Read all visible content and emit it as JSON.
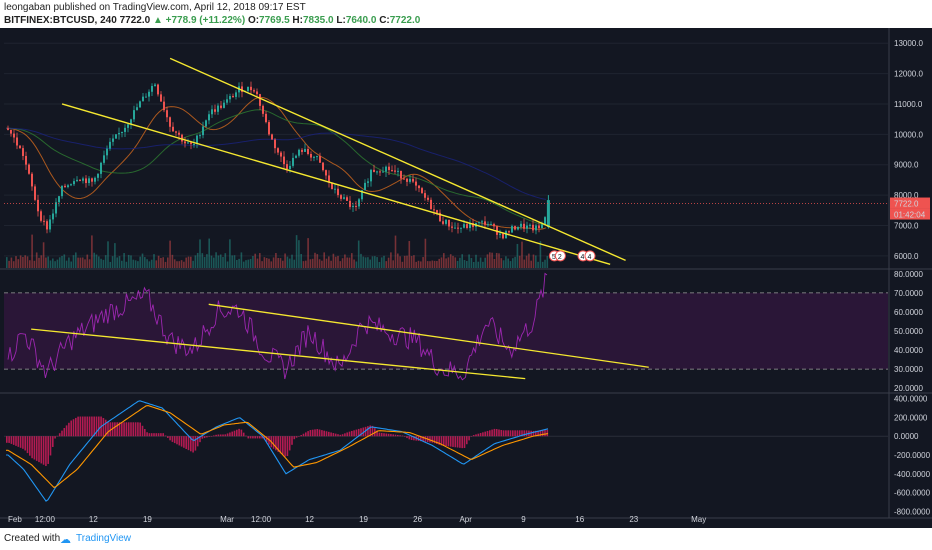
{
  "header": {
    "author": "leongaban",
    "published_text": "published on TradingView.com, April 12, 2018 09:17 EST",
    "symbol": "BITFINEX:BTCUSD, 240",
    "price": "7722.0",
    "change": "+778.9 (+11.22%)",
    "open_label": "O:",
    "open": "7769.5",
    "high_label": "H:",
    "high": "7835.0",
    "low_label": "L:",
    "low": "7640.0",
    "close_label": "C:",
    "close": "7722.0"
  },
  "footer": {
    "created_with": "Created with",
    "brand": "TradingView"
  },
  "colors": {
    "background": "#131722",
    "trendline": "#f5e830",
    "rsi": "#9c27b0",
    "rsi_band": "#2a1637",
    "macd": "#2196f3",
    "signal": "#ff9800",
    "histogram": "#e91e63",
    "up_candle": "#26a69a",
    "down_candle": "#ef5350",
    "price_label": "#ef5350"
  },
  "chart_data": [
    {
      "type": "candlestick",
      "title": "BTCUSD price",
      "y_ticks": [
        "13000.0",
        "12000.0",
        "11000.0",
        "10000.0",
        "9000.0",
        "8000.0",
        "7000.0",
        "6000.0"
      ],
      "ylim": [
        5600,
        13500
      ],
      "last_price_label": "7722.0",
      "countdown_label": "01:42:04",
      "close_path": [
        {
          "x": "Feb 1",
          "y": 10200
        },
        {
          "x": "Feb 3",
          "y": 9300
        },
        {
          "x": "Feb 5",
          "y": 7400
        },
        {
          "x": "Feb 6",
          "y": 6900
        },
        {
          "x": "Feb 8",
          "y": 8200
        },
        {
          "x": "Feb 10",
          "y": 8600
        },
        {
          "x": "Feb 12",
          "y": 8400
        },
        {
          "x": "Feb 14",
          "y": 9600
        },
        {
          "x": "Feb 16",
          "y": 10200
        },
        {
          "x": "Feb 18",
          "y": 11000
        },
        {
          "x": "Feb 20",
          "y": 11700
        },
        {
          "x": "Feb 22",
          "y": 10300
        },
        {
          "x": "Feb 24",
          "y": 9700
        },
        {
          "x": "Feb 25",
          "y": 9600
        },
        {
          "x": "Feb 27",
          "y": 10700
        },
        {
          "x": "Mar 1",
          "y": 11000
        },
        {
          "x": "Mar 3",
          "y": 11500
        },
        {
          "x": "Mar 5",
          "y": 11500
        },
        {
          "x": "Mar 7",
          "y": 9900
        },
        {
          "x": "Mar 9",
          "y": 8900
        },
        {
          "x": "Mar 11",
          "y": 9500
        },
        {
          "x": "Mar 13",
          "y": 9200
        },
        {
          "x": "Mar 15",
          "y": 8200
        },
        {
          "x": "Mar 18",
          "y": 7500
        },
        {
          "x": "Mar 20",
          "y": 8800
        },
        {
          "x": "Mar 22",
          "y": 8900
        },
        {
          "x": "Mar 25",
          "y": 8500
        },
        {
          "x": "Mar 27",
          "y": 7900
        },
        {
          "x": "Mar 29",
          "y": 7200
        },
        {
          "x": "Mar 31",
          "y": 6900
        },
        {
          "x": "Apr 2",
          "y": 7000
        },
        {
          "x": "Apr 4",
          "y": 7100
        },
        {
          "x": "Apr 6",
          "y": 6650
        },
        {
          "x": "Apr 8",
          "y": 7000
        },
        {
          "x": "Apr 10",
          "y": 6900
        },
        {
          "x": "Apr 11",
          "y": 6900
        },
        {
          "x": "Apr 12",
          "y": 7722
        }
      ]
    },
    {
      "type": "line",
      "title": "RSI",
      "y_ticks": [
        "80.0000",
        "70.0000",
        "60.0000",
        "50.0000",
        "40.0000",
        "30.0000",
        "20.0000"
      ],
      "ylim": [
        18,
        82
      ],
      "bands": [
        30,
        70
      ],
      "series": [
        {
          "values": [
            {
              "x": "Feb 1",
              "y": 35
            },
            {
              "x": "Feb 3",
              "y": 50
            },
            {
              "x": "Feb 6",
              "y": 28
            },
            {
              "x": "Feb 9",
              "y": 45
            },
            {
              "x": "Feb 14",
              "y": 60
            },
            {
              "x": "Feb 19",
              "y": 68
            },
            {
              "x": "Feb 22",
              "y": 45
            },
            {
              "x": "Feb 25",
              "y": 40
            },
            {
              "x": "Feb 28",
              "y": 60
            },
            {
              "x": "Mar 3",
              "y": 62
            },
            {
              "x": "Mar 6",
              "y": 40
            },
            {
              "x": "Mar 9",
              "y": 30
            },
            {
              "x": "Mar 12",
              "y": 50
            },
            {
              "x": "Mar 16",
              "y": 30
            },
            {
              "x": "Mar 19",
              "y": 55
            },
            {
              "x": "Mar 22",
              "y": 50
            },
            {
              "x": "Mar 26",
              "y": 45
            },
            {
              "x": "Mar 29",
              "y": 30
            },
            {
              "x": "Apr 1",
              "y": 28
            },
            {
              "x": "Apr 4",
              "y": 55
            },
            {
              "x": "Apr 7",
              "y": 40
            },
            {
              "x": "Apr 10",
              "y": 55
            },
            {
              "x": "Apr 12",
              "y": 80
            }
          ]
        }
      ]
    },
    {
      "type": "line",
      "title": "MACD",
      "y_ticks": [
        "400.0000",
        "200.0000",
        "0.0000",
        "-200.0000",
        "-400.0000",
        "-600.0000",
        "-800.0000"
      ],
      "ylim": [
        -850,
        450
      ],
      "series": [
        {
          "values": [
            {
              "x": "Feb 1",
              "y": -200
            },
            {
              "x": "Feb 3",
              "y": -350
            },
            {
              "x": "Feb 6",
              "y": -700
            },
            {
              "x": "Feb 9",
              "y": -300
            },
            {
              "x": "Feb 13",
              "y": 100
            },
            {
              "x": "Feb 18",
              "y": 380
            },
            {
              "x": "Feb 21",
              "y": 300
            },
            {
              "x": "Feb 25",
              "y": -50
            },
            {
              "x": "Feb 28",
              "y": 100
            },
            {
              "x": "Mar 3",
              "y": 200
            },
            {
              "x": "Mar 6",
              "y": 0
            },
            {
              "x": "Mar 9",
              "y": -400
            },
            {
              "x": "Mar 12",
              "y": -250
            },
            {
              "x": "Mar 16",
              "y": -150
            },
            {
              "x": "Mar 20",
              "y": 100
            },
            {
              "x": "Mar 24",
              "y": 50
            },
            {
              "x": "Mar 28",
              "y": -100
            },
            {
              "x": "Apr 1",
              "y": -300
            },
            {
              "x": "Apr 5",
              "y": -80
            },
            {
              "x": "Apr 9",
              "y": 20
            },
            {
              "x": "Apr 12",
              "y": 80
            }
          ]
        },
        {
          "values": [
            {
              "x": "Feb 1",
              "y": -150
            },
            {
              "x": "Feb 4",
              "y": -300
            },
            {
              "x": "Feb 7",
              "y": -550
            },
            {
              "x": "Feb 10",
              "y": -350
            },
            {
              "x": "Feb 14",
              "y": 50
            },
            {
              "x": "Feb 19",
              "y": 330
            },
            {
              "x": "Feb 22",
              "y": 250
            },
            {
              "x": "Feb 26",
              "y": 20
            },
            {
              "x": "Mar 1",
              "y": 120
            },
            {
              "x": "Mar 4",
              "y": 150
            },
            {
              "x": "Mar 7",
              "y": -50
            },
            {
              "x": "Mar 10",
              "y": -330
            },
            {
              "x": "Mar 13",
              "y": -280
            },
            {
              "x": "Mar 17",
              "y": -120
            },
            {
              "x": "Mar 21",
              "y": 60
            },
            {
              "x": "Mar 25",
              "y": 40
            },
            {
              "x": "Mar 29",
              "y": -80
            },
            {
              "x": "Apr 2",
              "y": -250
            },
            {
              "x": "Apr 6",
              "y": -100
            },
            {
              "x": "Apr 10",
              "y": 0
            },
            {
              "x": "Apr 12",
              "y": 30
            }
          ]
        }
      ]
    }
  ],
  "x_axis_labels": [
    "Feb",
    "12:00",
    "12",
    "19",
    "Mar",
    "12:00",
    "12",
    "19",
    "26",
    "Apr",
    "9",
    "16",
    "23",
    "May"
  ],
  "badges": [
    "5",
    "2",
    "4",
    "4"
  ]
}
